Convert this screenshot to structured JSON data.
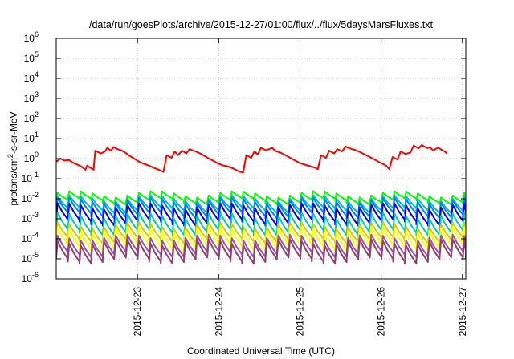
{
  "chart_data": {
    "type": "line",
    "title": "/data/run/goesPlots/archive/2015-12-27/01:00/flux/../flux/5daysMarsFluxes.txt",
    "xlabel": "Coordinated Universal Time (UTC)",
    "ylabel_parts": {
      "base": "protons/cm",
      "exp": "2",
      "rest": "-s-sr-MeV"
    },
    "yscale": "log",
    "ylim": [
      1e-06,
      1000000.0
    ],
    "xlim": [
      "2015-12-22T00:00",
      "2015-12-27T01:00"
    ],
    "grid": true,
    "y_ticks": [
      {
        "value": 1e-06,
        "mantissa": "10",
        "exp": "-6"
      },
      {
        "value": 1e-05,
        "mantissa": "10",
        "exp": "-5"
      },
      {
        "value": 0.0001,
        "mantissa": "10",
        "exp": "-4"
      },
      {
        "value": 0.001,
        "mantissa": "10",
        "exp": "-3"
      },
      {
        "value": 0.01,
        "mantissa": "10",
        "exp": "-2"
      },
      {
        "value": 0.1,
        "mantissa": "10",
        "exp": "-1"
      },
      {
        "value": 1.0,
        "mantissa": "10",
        "exp": "0"
      },
      {
        "value": 10.0,
        "mantissa": "10",
        "exp": "1"
      },
      {
        "value": 100.0,
        "mantissa": "10",
        "exp": "2"
      },
      {
        "value": 1000.0,
        "mantissa": "10",
        "exp": "3"
      },
      {
        "value": 10000.0,
        "mantissa": "10",
        "exp": "4"
      },
      {
        "value": 100000.0,
        "mantissa": "10",
        "exp": "5"
      },
      {
        "value": 1000000.0,
        "mantissa": "10",
        "exp": "6"
      }
    ],
    "x_ticks": [
      {
        "value": "2015-12-23T00:00",
        "label": "2015-12-23"
      },
      {
        "value": "2015-12-24T00:00",
        "label": "2015-12-24"
      },
      {
        "value": "2015-12-25T00:00",
        "label": "2015-12-25"
      },
      {
        "value": "2015-12-26T00:00",
        "label": "2015-12-26"
      },
      {
        "value": "2015-12-27T00:00",
        "label": "2015-12-27"
      }
    ],
    "series": [
      {
        "color": "#ff0000",
        "values": [
          [
            0,
            0.7
          ],
          [
            0.05,
            1.0
          ],
          [
            0.1,
            0.8
          ],
          [
            0.16,
            0.85
          ],
          [
            0.2,
            0.65
          ],
          [
            0.26,
            0.5
          ],
          [
            0.31,
            0.4
          ],
          [
            0.36,
            0.28
          ],
          [
            0.38,
            0.45
          ],
          [
            0.42,
            0.35
          ],
          [
            0.46,
            0.28
          ],
          [
            0.48,
            2.5
          ],
          [
            0.55,
            1.8
          ],
          [
            0.6,
            2.3
          ],
          [
            0.63,
            3.5
          ],
          [
            0.67,
            2.5
          ],
          [
            0.71,
            3.8
          ],
          [
            0.75,
            3.0
          ],
          [
            0.8,
            2.6
          ],
          [
            0.85,
            2.0
          ],
          [
            0.9,
            1.4
          ],
          [
            0.96,
            1.0
          ],
          [
            1.02,
            0.7
          ],
          [
            1.08,
            0.55
          ],
          [
            1.14,
            0.45
          ],
          [
            1.2,
            0.35
          ],
          [
            1.26,
            0.28
          ],
          [
            1.32,
            0.22
          ],
          [
            1.36,
            1.5
          ],
          [
            1.42,
            1.1
          ],
          [
            1.46,
            2.3
          ],
          [
            1.5,
            1.5
          ],
          [
            1.55,
            2.5
          ],
          [
            1.6,
            1.8
          ],
          [
            1.64,
            3.0
          ],
          [
            1.7,
            2.4
          ],
          [
            1.76,
            1.9
          ],
          [
            1.82,
            1.4
          ],
          [
            1.88,
            1.0
          ],
          [
            1.94,
            0.75
          ],
          [
            2.0,
            0.55
          ],
          [
            2.06,
            0.45
          ],
          [
            2.12,
            0.4
          ],
          [
            2.18,
            0.32
          ],
          [
            2.24,
            0.24
          ],
          [
            2.3,
            0.2
          ],
          [
            2.34,
            1.5
          ],
          [
            2.4,
            1.1
          ],
          [
            2.44,
            2.3
          ],
          [
            2.48,
            1.6
          ],
          [
            2.52,
            3.5
          ],
          [
            2.58,
            2.6
          ],
          [
            2.62,
            3.0
          ],
          [
            2.66,
            3.4
          ],
          [
            2.7,
            2.4
          ],
          [
            2.76,
            2.0
          ],
          [
            2.82,
            1.5
          ],
          [
            2.88,
            1.1
          ],
          [
            2.94,
            0.8
          ],
          [
            3.0,
            0.6
          ],
          [
            3.06,
            0.5
          ],
          [
            3.12,
            0.42
          ],
          [
            3.18,
            0.36
          ],
          [
            3.22,
            0.3
          ],
          [
            3.26,
            1.5
          ],
          [
            3.32,
            1.1
          ],
          [
            3.36,
            2.5
          ],
          [
            3.42,
            1.8
          ],
          [
            3.46,
            3.0
          ],
          [
            3.52,
            2.3
          ],
          [
            3.56,
            4.0
          ],
          [
            3.62,
            3.2
          ],
          [
            3.68,
            2.7
          ],
          [
            3.74,
            2.1
          ],
          [
            3.8,
            1.6
          ],
          [
            3.86,
            1.2
          ],
          [
            3.92,
            0.9
          ],
          [
            3.98,
            0.65
          ],
          [
            4.02,
            0.55
          ],
          [
            4.06,
            0.45
          ],
          [
            4.1,
            0.3
          ],
          [
            4.14,
            1.2
          ],
          [
            4.2,
            0.9
          ],
          [
            4.24,
            2.3
          ],
          [
            4.3,
            1.7
          ],
          [
            4.36,
            2.0
          ],
          [
            4.4,
            4.5
          ],
          [
            4.46,
            3.3
          ],
          [
            4.5,
            4.8
          ],
          [
            4.56,
            3.4
          ],
          [
            4.6,
            3.6
          ],
          [
            4.64,
            2.6
          ],
          [
            4.7,
            3.5
          ],
          [
            4.74,
            2.8
          ],
          [
            4.78,
            2.3
          ],
          [
            4.81,
            1.8
          ]
        ]
      },
      {
        "color": "#00ff00",
        "amp": {
          "peak": 0.018,
          "trough": 0.008
        }
      },
      {
        "color": "#00c0c0",
        "amp": {
          "peak": 0.011,
          "trough": 0.0028
        }
      },
      {
        "color": "#0080ff",
        "amp": {
          "peak": 0.0085,
          "trough": 0.0016
        }
      },
      {
        "color": "#0000ff",
        "amp": {
          "peak": 0.0045,
          "trough": 0.0007
        }
      },
      {
        "color": "#00d0a0",
        "amp": {
          "peak": 0.0015,
          "trough": 0.00022
        }
      },
      {
        "color": "#cfcf00",
        "amp": {
          "peak": 0.0005,
          "trough": 9e-05
        }
      },
      {
        "color": "#ffff00",
        "amp": {
          "peak": 0.0003,
          "trough": 4e-05
        }
      },
      {
        "color": "#a050a0",
        "amp": {
          "peak": 0.00012,
          "trough": 1.8e-05
        }
      },
      {
        "color": "#904070",
        "amp": {
          "peak": 7e-05,
          "trough": 9e-06
        }
      }
    ],
    "pulse_period_days": 0.143,
    "legend": "none"
  }
}
